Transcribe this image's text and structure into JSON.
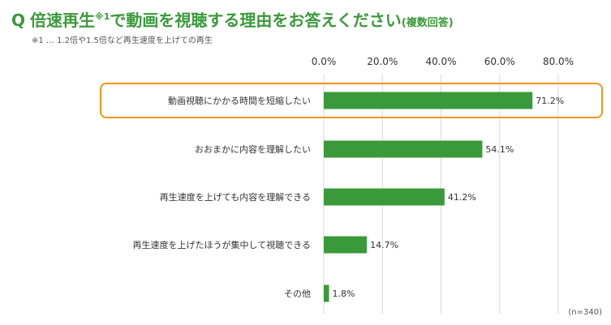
{
  "title": {
    "q": "Q",
    "main": "倍速再生",
    "sup": "※1",
    "main2": "で動画を視聴する理由をお答えください",
    "note": "(複数回答)"
  },
  "footnote": "※1 … 1.2倍や1.5倍など再生速度を上げての再生",
  "sample_size": "(n=340)",
  "colors": {
    "bar": "#3a9a3a",
    "title": "#3a9a3a",
    "highlight": "#f0961e",
    "grid": "#d9d9d9"
  },
  "chart_data": {
    "type": "bar",
    "orientation": "horizontal",
    "categories": [
      "動画視聴にかかる時間を短縮したい",
      "おおまかに内容を理解したい",
      "再生速度を上げても内容を理解できる",
      "再生速度を上げたほうが集中して視聴できる",
      "その他"
    ],
    "values": [
      71.2,
      54.1,
      41.2,
      14.7,
      1.8
    ],
    "value_labels": [
      "71.2%",
      "54.1%",
      "41.2%",
      "14.7%",
      "1.8%"
    ],
    "x_ticks": [
      0,
      20,
      40,
      60,
      80
    ],
    "x_tick_labels": [
      "0.0%",
      "20.0%",
      "40.0%",
      "60.0%",
      "80.0%"
    ],
    "xlim": [
      0,
      80
    ],
    "grid": true,
    "highlighted_category_index": 0
  }
}
